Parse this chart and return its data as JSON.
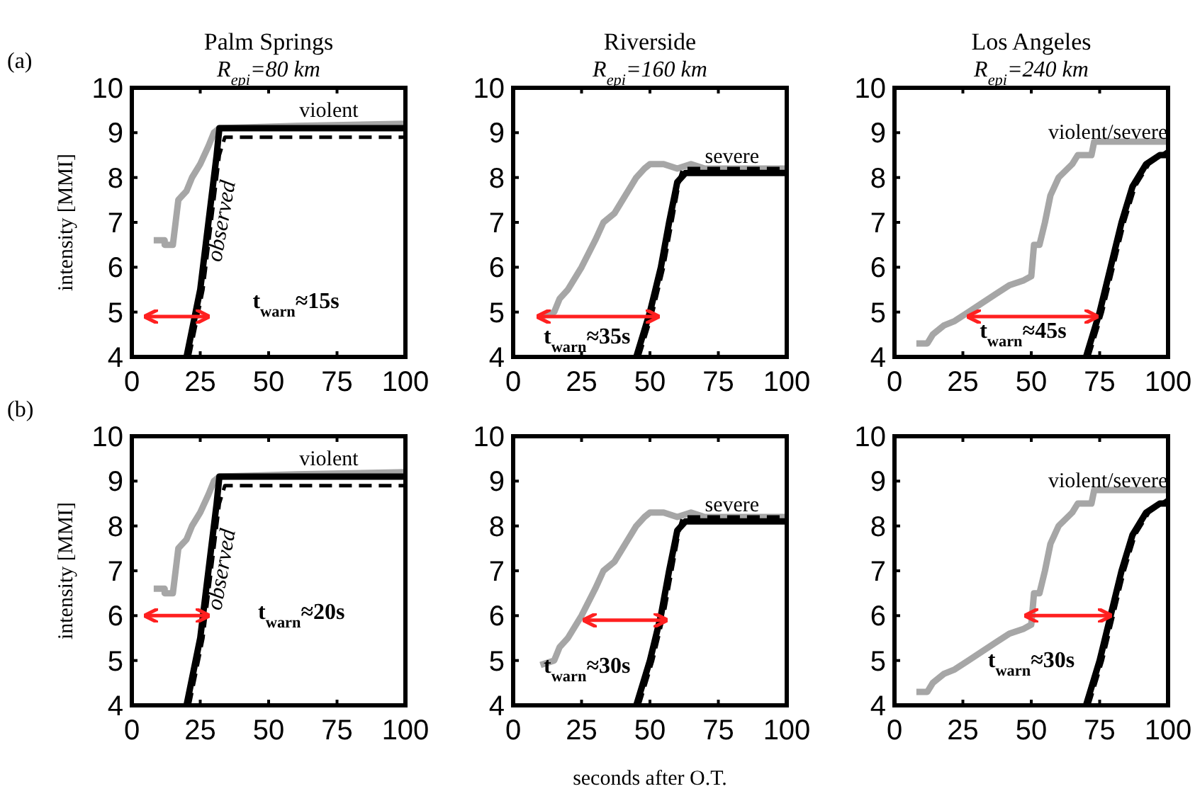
{
  "chart_data": [
    {
      "type": "line",
      "title": "Palm Springs",
      "subtitle": "R$_{epi}$=80 km",
      "ylabel": "intensity [MMI]",
      "xlim": [
        0,
        100
      ],
      "ylim": [
        4,
        10
      ],
      "xticks": [
        0,
        25,
        50,
        75,
        100
      ],
      "yticks": [
        4,
        5,
        6,
        7,
        8,
        9,
        10
      ],
      "annotations": [
        "(a)",
        "violent",
        "t$_{warn}$≈15s"
      ],
      "series": [
        {
          "color": "#a6a6a6",
          "line_style": "solid",
          "x": [
            8,
            12,
            12,
            15,
            16,
            17,
            20,
            22,
            25,
            28,
            30,
            32,
            60,
            100
          ],
          "values": [
            6.6,
            6.6,
            6.5,
            6.5,
            7.0,
            7.5,
            7.7,
            8.0,
            8.3,
            8.7,
            9.0,
            9.1,
            9.15,
            9.2
          ]
        },
        {
          "color": "#000000",
          "line_style": "dashed",
          "x": [
            21,
            26,
            29,
            32,
            34,
            100
          ],
          "values": [
            4,
            5.5,
            7,
            8.5,
            8.9,
            8.9
          ]
        },
        {
          "name": "observed",
          "color": "#000000",
          "line_style": "solid",
          "x": [
            20,
            25,
            28,
            31,
            32,
            100
          ],
          "values": [
            4,
            5.5,
            7,
            8.5,
            9.1,
            9.1
          ]
        },
        {
          "color": "#ff2020",
          "line_style": "solid",
          "x": [
            5,
            28
          ],
          "values": [
            4.9,
            4.9
          ]
        }
      ]
    },
    {
      "type": "line",
      "title": "Riverside",
      "subtitle": "R$_{epi}$=160 km",
      "xlim": [
        0,
        100
      ],
      "ylim": [
        4,
        10
      ],
      "xticks": [
        0,
        25,
        50,
        75,
        100
      ],
      "yticks": [
        4,
        5,
        6,
        7,
        8,
        9,
        10
      ],
      "annotations": [
        "severe",
        "t$_{warn}$≈35s"
      ],
      "series": [
        {
          "color": "#a6a6a6",
          "line_style": "solid",
          "x": [
            10,
            15,
            17,
            20,
            25,
            30,
            33,
            37,
            40,
            43,
            45,
            48,
            50,
            55,
            60,
            65,
            70,
            100
          ],
          "values": [
            4.9,
            5.0,
            5.3,
            5.5,
            6.0,
            6.6,
            7.0,
            7.2,
            7.5,
            7.8,
            8.0,
            8.2,
            8.3,
            8.3,
            8.2,
            8.3,
            8.2,
            8.2
          ]
        },
        {
          "color": "#000000",
          "line_style": "dashed",
          "x": [
            46,
            51,
            55,
            58,
            61,
            62,
            100
          ],
          "values": [
            4,
            5,
            6,
            7,
            8,
            8.2,
            8.2
          ]
        },
        {
          "color": "#000000",
          "line_style": "solid",
          "x": [
            45,
            50,
            54,
            57,
            60,
            63,
            100
          ],
          "values": [
            4,
            5,
            6,
            7,
            7.9,
            8.1,
            8.1
          ]
        },
        {
          "color": "#ff2020",
          "line_style": "solid",
          "x": [
            9,
            53
          ],
          "values": [
            4.9,
            4.9
          ]
        }
      ]
    },
    {
      "type": "line",
      "title": "Los Angeles",
      "subtitle": "R$_{epi}$=240 km",
      "xlim": [
        0,
        100
      ],
      "ylim": [
        4,
        10
      ],
      "xticks": [
        0,
        25,
        50,
        75,
        100
      ],
      "yticks": [
        4,
        5,
        6,
        7,
        8,
        9,
        10
      ],
      "annotations": [
        "violent/severe",
        "t$_{warn}$≈45s"
      ],
      "series": [
        {
          "color": "#a6a6a6",
          "line_style": "solid",
          "x": [
            8,
            12,
            14,
            18,
            22,
            27,
            32,
            37,
            42,
            47,
            50,
            51,
            53,
            55,
            57,
            60,
            65,
            67,
            72,
            73,
            100
          ],
          "values": [
            4.3,
            4.3,
            4.5,
            4.7,
            4.8,
            5.0,
            5.2,
            5.4,
            5.6,
            5.7,
            5.8,
            6.5,
            6.5,
            7.0,
            7.6,
            8.0,
            8.3,
            8.5,
            8.5,
            8.8,
            8.8
          ]
        },
        {
          "color": "#000000",
          "line_style": "dashed",
          "x": [
            71,
            76,
            80,
            84,
            88,
            93,
            100
          ],
          "values": [
            4,
            5,
            6,
            7,
            7.8,
            8.3,
            8.6
          ]
        },
        {
          "color": "#000000",
          "line_style": "solid",
          "x": [
            70,
            75,
            79,
            83,
            87,
            92,
            97,
            100
          ],
          "values": [
            4,
            5,
            6,
            7,
            7.8,
            8.3,
            8.5,
            8.5
          ]
        },
        {
          "color": "#ff2020",
          "line_style": "solid",
          "x": [
            27,
            74
          ],
          "values": [
            4.9,
            4.9
          ]
        }
      ]
    },
    {
      "type": "line",
      "ylabel": "intensity [MMI]",
      "xlim": [
        0,
        100
      ],
      "ylim": [
        4,
        10
      ],
      "xticks": [
        0,
        25,
        50,
        75,
        100
      ],
      "yticks": [
        4,
        5,
        6,
        7,
        8,
        9,
        10
      ],
      "annotations": [
        "(b)",
        "violent",
        "t$_{warn}$≈20s"
      ],
      "series": [
        {
          "color": "#a6a6a6",
          "line_style": "solid",
          "x": [
            8,
            12,
            12,
            15,
            16,
            17,
            20,
            22,
            25,
            28,
            30,
            32,
            60,
            100
          ],
          "values": [
            6.6,
            6.6,
            6.5,
            6.5,
            7.0,
            7.5,
            7.7,
            8.0,
            8.3,
            8.7,
            9.0,
            9.1,
            9.15,
            9.2
          ]
        },
        {
          "color": "#000000",
          "line_style": "dashed",
          "x": [
            21,
            26,
            29,
            32,
            34,
            100
          ],
          "values": [
            4,
            5.5,
            7,
            8.5,
            8.9,
            8.9
          ]
        },
        {
          "name": "observed",
          "color": "#000000",
          "line_style": "solid",
          "x": [
            20,
            25,
            28,
            31,
            32,
            100
          ],
          "values": [
            4,
            5.5,
            7,
            8.5,
            9.1,
            9.1
          ]
        },
        {
          "color": "#ff2020",
          "line_style": "solid",
          "x": [
            5,
            28
          ],
          "values": [
            6,
            6
          ]
        }
      ]
    },
    {
      "type": "line",
      "xlabel": "seconds after O.T.",
      "xlim": [
        0,
        100
      ],
      "ylim": [
        4,
        10
      ],
      "xticks": [
        0,
        25,
        50,
        75,
        100
      ],
      "yticks": [
        4,
        5,
        6,
        7,
        8,
        9,
        10
      ],
      "annotations": [
        "severe",
        "t$_{warn}$≈30s"
      ],
      "series": [
        {
          "color": "#a6a6a6",
          "line_style": "solid",
          "x": [
            10,
            15,
            17,
            20,
            25,
            30,
            33,
            37,
            40,
            43,
            45,
            48,
            50,
            55,
            60,
            65,
            70,
            100
          ],
          "values": [
            4.9,
            5.0,
            5.3,
            5.5,
            6.0,
            6.6,
            7.0,
            7.2,
            7.5,
            7.8,
            8.0,
            8.2,
            8.3,
            8.3,
            8.2,
            8.3,
            8.2,
            8.2
          ]
        },
        {
          "color": "#000000",
          "line_style": "dashed",
          "x": [
            46,
            51,
            55,
            58,
            61,
            62,
            100
          ],
          "values": [
            4,
            5,
            6,
            7,
            8,
            8.2,
            8.2
          ]
        },
        {
          "color": "#000000",
          "line_style": "solid",
          "x": [
            45,
            50,
            54,
            57,
            60,
            63,
            100
          ],
          "values": [
            4,
            5,
            6,
            7,
            7.9,
            8.1,
            8.1
          ]
        },
        {
          "color": "#ff2020",
          "line_style": "solid",
          "x": [
            26,
            56
          ],
          "values": [
            5.9,
            5.9
          ]
        }
      ]
    },
    {
      "type": "line",
      "xlim": [
        0,
        100
      ],
      "ylim": [
        4,
        10
      ],
      "xticks": [
        0,
        25,
        50,
        75,
        100
      ],
      "yticks": [
        4,
        5,
        6,
        7,
        8,
        9,
        10
      ],
      "annotations": [
        "violent/severe",
        "t$_{warn}$≈30s"
      ],
      "series": [
        {
          "color": "#a6a6a6",
          "line_style": "solid",
          "x": [
            8,
            12,
            14,
            18,
            22,
            27,
            32,
            37,
            42,
            47,
            50,
            51,
            53,
            55,
            57,
            60,
            65,
            67,
            72,
            73,
            100
          ],
          "values": [
            4.3,
            4.3,
            4.5,
            4.7,
            4.8,
            5.0,
            5.2,
            5.4,
            5.6,
            5.7,
            5.8,
            6.5,
            6.5,
            7.0,
            7.6,
            8.0,
            8.3,
            8.5,
            8.5,
            8.8,
            8.8
          ]
        },
        {
          "color": "#000000",
          "line_style": "dashed",
          "x": [
            71,
            76,
            80,
            84,
            88,
            93,
            100
          ],
          "values": [
            4,
            5,
            6,
            7,
            7.8,
            8.3,
            8.6
          ]
        },
        {
          "color": "#000000",
          "line_style": "solid",
          "x": [
            70,
            75,
            79,
            83,
            87,
            92,
            97,
            100
          ],
          "values": [
            4,
            5,
            6,
            7,
            7.8,
            8.3,
            8.5,
            8.5
          ]
        },
        {
          "color": "#ff2020",
          "line_style": "solid",
          "x": [
            48,
            79
          ],
          "values": [
            6,
            6
          ]
        }
      ]
    }
  ]
}
